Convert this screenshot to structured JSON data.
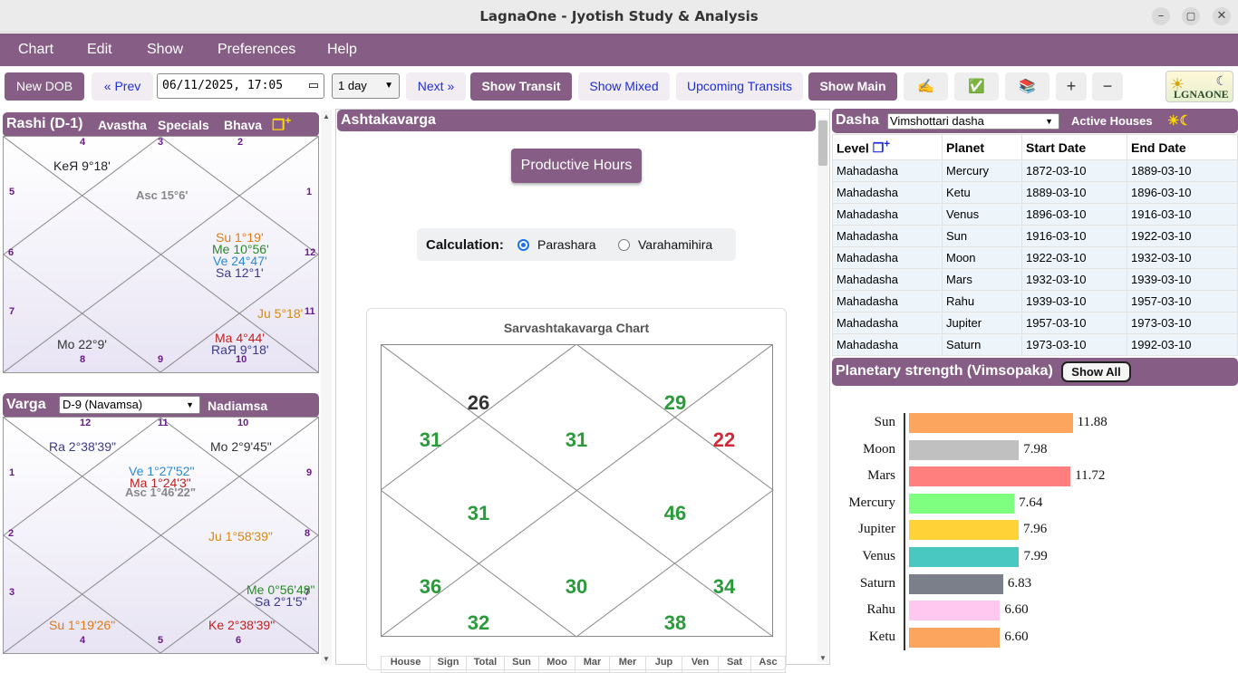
{
  "window": {
    "title": "LagnaOne - Jyotish Study & Analysis",
    "minimize": "–",
    "maximize": "▢",
    "close": "✕"
  },
  "menu": [
    "Chart",
    "Edit",
    "Show",
    "Preferences",
    "Help"
  ],
  "toolbar": {
    "new_dob": "New DOB",
    "prev": "« Prev",
    "datetime": "06/11/2025, 17:05",
    "step": "1 day",
    "next": "Next »",
    "show_transit": "Show Transit",
    "show_mixed": "Show Mixed",
    "upcoming": "Upcoming Transits",
    "show_main": "Show Main",
    "b1": "✍",
    "b2": "✅",
    "b3": "📚",
    "plus": "+",
    "minus": "−",
    "logo": "LGNAONE"
  },
  "rashi": {
    "tabs": [
      "Rashi (D-1)",
      "Avastha",
      "Specials",
      "Bhava"
    ],
    "houses": [
      {
        "n": "4"
      },
      {
        "n": "3"
      },
      {
        "n": "2"
      },
      {
        "n": "5"
      },
      {
        "n": "1"
      },
      {
        "n": "6"
      },
      {
        "n": "12"
      },
      {
        "n": "7"
      },
      {
        "n": "11"
      },
      {
        "n": "8"
      },
      {
        "n": "9"
      },
      {
        "n": "10"
      }
    ],
    "planets": [
      {
        "t": "KeЯ 9°18'",
        "c": "#222"
      },
      {
        "t": "Asc 15°6'",
        "c": "#888"
      },
      {
        "t": "Su 1°19'",
        "c": "#e07a16"
      },
      {
        "t": "Me 10°56'",
        "c": "#2a8a2a"
      },
      {
        "t": "Ve 24°47'",
        "c": "#2a8ad6"
      },
      {
        "t": "Sa 12°1'",
        "c": "#3a3a8a"
      },
      {
        "t": "Ju 5°18'",
        "c": "#d68a10"
      },
      {
        "t": "Mo 22°9'",
        "c": "#333"
      },
      {
        "t": "Ma 4°44'",
        "c": "#c02020"
      },
      {
        "t": "RaЯ 9°18'",
        "c": "#3a3a8a"
      }
    ]
  },
  "varga": {
    "title": "Varga",
    "select": "D-9 (Navamsa)",
    "nadiamsa": "Nadiamsa",
    "houses": [
      {
        "n": "12"
      },
      {
        "n": "11"
      },
      {
        "n": "10"
      },
      {
        "n": "1"
      },
      {
        "n": "9"
      },
      {
        "n": "2"
      },
      {
        "n": "8"
      },
      {
        "n": "3"
      },
      {
        "n": "7"
      },
      {
        "n": "4"
      },
      {
        "n": "5"
      },
      {
        "n": "6"
      }
    ],
    "planets": [
      {
        "t": "Ra 2°38'39\"",
        "c": "#3a3a8a"
      },
      {
        "t": "Mo 2°9'45\"",
        "c": "#333"
      },
      {
        "t": "Ve 1°27'52\"",
        "c": "#2a8ad6"
      },
      {
        "t": "Ma 1°24'3\"",
        "c": "#c02020"
      },
      {
        "t": "Asc 1°46'22\"",
        "c": "#888"
      },
      {
        "t": "Ju 1°58'39\"",
        "c": "#d68a10"
      },
      {
        "t": "Me 0°56'48\"",
        "c": "#2a8a2a"
      },
      {
        "t": "Sa 2°1'5\"",
        "c": "#3a3a8a"
      },
      {
        "t": "Su 1°19'26\"",
        "c": "#e07a16"
      },
      {
        "t": "Ke 2°38'39\"",
        "c": "#c02020"
      }
    ]
  },
  "ashtaka": {
    "title": "Ashtakavarga",
    "productive": "Productive Hours",
    "calc_label": "Calculation:",
    "opt1": "Parashara",
    "opt2": "Varahamihira",
    "chart_title": "Sarvashtakavarga Chart",
    "values": [
      {
        "v": "26",
        "c": "#333"
      },
      {
        "v": "29",
        "c": "#2a9a3a"
      },
      {
        "v": "31",
        "c": "#2a9a3a"
      },
      {
        "v": "31",
        "c": "#2a9a3a"
      },
      {
        "v": "22",
        "c": "#d02a3a"
      },
      {
        "v": "31",
        "c": "#2a9a3a"
      },
      {
        "v": "46",
        "c": "#2a9a3a"
      },
      {
        "v": "36",
        "c": "#2a9a3a"
      },
      {
        "v": "30",
        "c": "#2a9a3a"
      },
      {
        "v": "34",
        "c": "#2a9a3a"
      },
      {
        "v": "32",
        "c": "#2a9a3a"
      },
      {
        "v": "38",
        "c": "#2a9a3a"
      }
    ],
    "table_headers": [
      "House",
      "Sign",
      "Total",
      "Sun",
      "Moo",
      "Mar",
      "Mer",
      "Jup",
      "Ven",
      "Sat",
      "Asc"
    ]
  },
  "dasha": {
    "title": "Dasha",
    "select": "Vimshottari dasha",
    "active": "Active Houses",
    "icon": "☀☾",
    "headers": [
      "Level",
      "Planet",
      "Start Date",
      "End Date"
    ],
    "rows": [
      [
        "Mahadasha",
        "Mercury",
        "1872-03-10",
        "1889-03-10"
      ],
      [
        "Mahadasha",
        "Ketu",
        "1889-03-10",
        "1896-03-10"
      ],
      [
        "Mahadasha",
        "Venus",
        "1896-03-10",
        "1916-03-10"
      ],
      [
        "Mahadasha",
        "Sun",
        "1916-03-10",
        "1922-03-10"
      ],
      [
        "Mahadasha",
        "Moon",
        "1922-03-10",
        "1932-03-10"
      ],
      [
        "Mahadasha",
        "Mars",
        "1932-03-10",
        "1939-03-10"
      ],
      [
        "Mahadasha",
        "Rahu",
        "1939-03-10",
        "1957-03-10"
      ],
      [
        "Mahadasha",
        "Jupiter",
        "1957-03-10",
        "1973-03-10"
      ],
      [
        "Mahadasha",
        "Saturn",
        "1973-03-10",
        "1992-03-10"
      ]
    ]
  },
  "strength": {
    "title": "Planetary strength (Vimsopaka)",
    "show_all": "Show All"
  },
  "chart_data": {
    "type": "bar",
    "orientation": "horizontal",
    "categories": [
      "Sun",
      "Moon",
      "Mars",
      "Mercury",
      "Jupiter",
      "Venus",
      "Saturn",
      "Rahu",
      "Ketu"
    ],
    "values": [
      11.88,
      7.98,
      11.72,
      7.64,
      7.96,
      7.99,
      6.83,
      6.6,
      6.6
    ],
    "labels": [
      "11.88",
      "7.98",
      "11.72",
      "7.64",
      "7.96",
      "7.99",
      "6.83",
      "6.60",
      "6.60"
    ],
    "colors": [
      "#fca55f",
      "#c0c0c0",
      "#ff7f7f",
      "#7fff7f",
      "#ffd237",
      "#48c8c0",
      "#7a7f8a",
      "#ffc8f0",
      "#fca55f"
    ],
    "xlim": [
      0,
      12.5
    ]
  }
}
